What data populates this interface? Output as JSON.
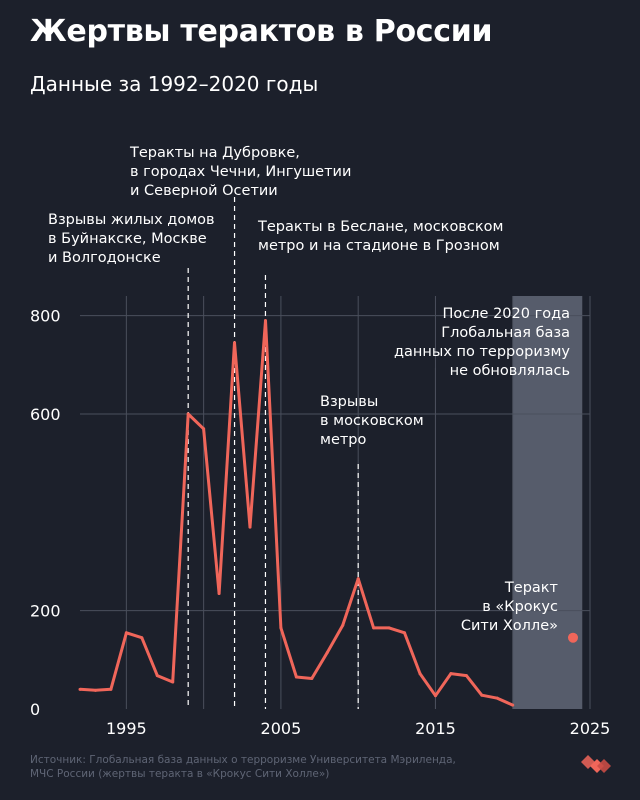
{
  "header": {
    "title": "Жертвы терактов в России",
    "subtitle": "Данные за 1992–2020 годы"
  },
  "source": {
    "line1": "Источник: Глобальная база данных о терроризме Университета Мэриленда,",
    "line2": "МЧС России (жертвы теракта в «Крокус Сити Холле»)"
  },
  "logo": {
    "icon": "brand-logo-icon",
    "color": "#f0665a"
  },
  "colors": {
    "background": "#1c202b",
    "line": "#f0665a",
    "grid": "#4a4f5c",
    "shade": "#565c6b",
    "text": "#ffffff"
  },
  "chart_data": {
    "type": "line",
    "x": [
      1992,
      1993,
      1994,
      1995,
      1996,
      1997,
      1998,
      1999,
      2000,
      2001,
      2002,
      2003,
      2004,
      2005,
      2006,
      2007,
      2008,
      2009,
      2010,
      2011,
      2012,
      2013,
      2014,
      2015,
      2016,
      2017,
      2018,
      2019,
      2020
    ],
    "series": [
      {
        "values": [
          40,
          38,
          40,
          155,
          145,
          68,
          55,
          600,
          570,
          235,
          745,
          370,
          790,
          165,
          65,
          62,
          115,
          170,
          265,
          165,
          165,
          155,
          72,
          27,
          72,
          68,
          28,
          22,
          8
        ]
      }
    ],
    "xlim": [
      1992,
      2025
    ],
    "ylim": [
      0,
      840
    ],
    "xticks": [
      1995,
      2000,
      2005,
      2010,
      2015,
      2020,
      2025
    ],
    "xtick_labels": [
      "1995",
      "2005",
      "2015",
      "2025"
    ],
    "yticks": [
      0,
      200,
      600,
      800
    ],
    "shaded_region": {
      "x": [
        2020,
        2024.5
      ]
    },
    "annotations": [
      {
        "x": 1999,
        "text": [
          "Взрывы жилых домов",
          "в Буйнакске, Москве",
          "и Волгодонске"
        ]
      },
      {
        "x": 2002,
        "text": [
          "Теракты на Дубровке,",
          "в городах Чечни, Ингушетии",
          "и Северной Осетии"
        ]
      },
      {
        "x": 2004,
        "text": [
          "Теракты в Беслане, московском",
          "метро и на стадионе в Грозном"
        ]
      },
      {
        "x": 2010,
        "text": [
          "Взрывы",
          "в московском",
          "метро"
        ]
      },
      {
        "x": 2015,
        "text": [
          "После 2020 года",
          "Глобальная база",
          "данных по терроризму",
          "не обновлялась"
        ]
      }
    ],
    "point": {
      "x": 2024,
      "y": 145,
      "text": [
        "Теракт",
        "в «Крокус",
        "Сити Холле»"
      ]
    }
  }
}
